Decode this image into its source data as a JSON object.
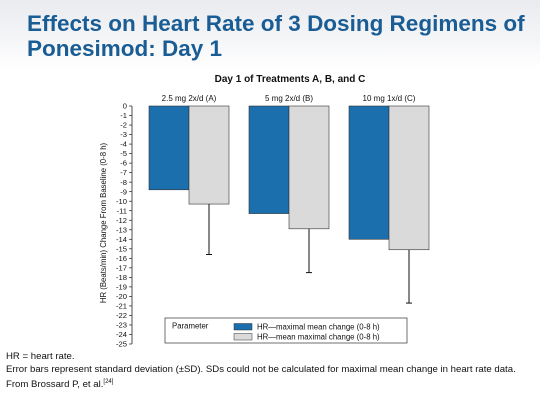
{
  "slide": {
    "title": "Effects on Heart Rate of 3 Dosing Regimens of Ponesimod: Day 1"
  },
  "chart_data": {
    "type": "bar",
    "title": "Day 1 of Treatments A, B, and C",
    "ylabel": "HR (Beats/min) Change From Baseline (0-8 h)",
    "xlabel": "",
    "ylim": [
      -25,
      0
    ],
    "yticks": [
      0,
      -1,
      -2,
      -3,
      -4,
      -5,
      -6,
      -7,
      -8,
      -9,
      -10,
      -11,
      -12,
      -13,
      -14,
      -15,
      -16,
      -17,
      -18,
      -19,
      -20,
      -21,
      -22,
      -23,
      -24,
      -25
    ],
    "categories": [
      "2.5 mg 2x/d (A)",
      "5 mg 2x/d (B)",
      "10 mg 1x/d (C)"
    ],
    "series": [
      {
        "name": "HR—maximal mean change (0-8 h)",
        "color": "#1b6fad",
        "values": [
          -8.8,
          -11.3,
          -14.0
        ],
        "error_sd": [
          null,
          null,
          null
        ]
      },
      {
        "name": "HR—mean maximal change (0-8 h)",
        "color": "#dadada",
        "values": [
          -10.3,
          -12.9,
          -15.1
        ],
        "error_sd": [
          5.3,
          4.6,
          5.6
        ]
      }
    ],
    "legend": {
      "title": "Parameter",
      "placement": "bottom-center"
    },
    "grid": false
  },
  "footnotes": {
    "line1": "HR = heart rate.",
    "line2": "Error bars represent standard deviation (±SD). SDs could not be calculated for maximal mean change in heart rate data.",
    "line3_text": "From Brossard P, et al.",
    "line3_ref": "[24]"
  }
}
